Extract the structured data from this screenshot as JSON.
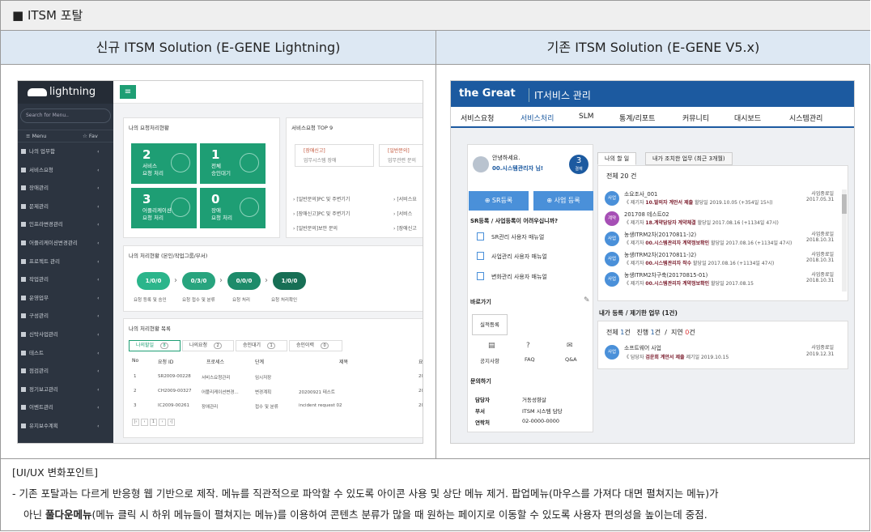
{
  "header": {
    "title": "■ ITSM 포탈"
  },
  "columns": {
    "left": "신규 ITSM Solution (E-GENE Lightning)",
    "right": "기존 ITSM Solution (E-GENE V5.x)"
  },
  "notes": {
    "title": "[UI/UX 변화포인트]",
    "line1": "- 기존 포탈과는 다르게 반응형 웹 기반으로 제작. 메뉴를 직관적으로 파악할 수 있도록 아이콘 사용 및 상단 메뉴 제거. 팝업메뉴(마우스를 가져다 대면 펼쳐지는 메뉴)가",
    "line2a": "아닌 ",
    "line2b": "풀다운메뉴",
    "line2c": "(메뉴 클릭 시 하위 메뉴들이 펼쳐지는 메뉴)를 이용하여 콘텐츠 분류가 많을 때 원하는 페이지로 이동할 수 있도록 사용자 편의성을 높이는데 중점."
  },
  "lightning": {
    "logo": "lightning",
    "search_placeholder": "Search for Menu..",
    "menu_label": "≡ Menu",
    "fav_label": "☆ Fav",
    "sidebar_items": [
      "나의 업무함",
      "서비스요청",
      "장애관리",
      "문제관리",
      "인프라변경관리",
      "어플리케이션변경관리",
      "프로젝트 관리",
      "작업관리",
      "운영업무",
      "구성관리",
      "신탁사업관리",
      "테스트",
      "점검관리",
      "정기보고관리",
      "이벤트관리",
      "유지보수계획"
    ],
    "sidebar_arrow": "‹",
    "menu_button": "≡",
    "my_status": {
      "title": "나의 요청처리현황",
      "tiles": [
        {
          "num": "2",
          "label1": "서비스",
          "label2": "요청 처리"
        },
        {
          "num": "1",
          "label1": "전체",
          "label2": "승인대기"
        },
        {
          "num": "3",
          "label1": "어플리케이션",
          "label2": "요청 처리"
        },
        {
          "num": "0",
          "label1": "장애",
          "label2": "요청 처리"
        }
      ]
    },
    "top9": {
      "title": "서비스요청 TOP 9",
      "cards": [
        {
          "tag": "[장애신고]",
          "desc": "업무시스템 장애"
        },
        {
          "tag": "[일반문의]",
          "desc": "업무관련 문의"
        }
      ],
      "list": [
        "[일반문의]PC 및 주변기기",
        "[서비스요",
        "[장애신고]PC 및 주변기기",
        "[서비스",
        "[일반문의]보안 문의",
        "[장애신고"
      ]
    },
    "process": {
      "title": "나의 처리현황 (본인/작업그룹/부서)",
      "pills": [
        "1/0/0",
        "0/3/0",
        "0/0/0",
        "1/0/0"
      ],
      "labels": [
        "요청 등록 및 승인",
        "요청 접수 및 분류",
        "요청 처리",
        "요청 처리확인"
      ]
    },
    "list": {
      "title": "나의 처리현황 목록",
      "tabs": [
        {
          "label": "나의할일",
          "count": "8"
        },
        {
          "label": "나의요청",
          "count": "2"
        },
        {
          "label": "승인대기",
          "count": "1"
        },
        {
          "label": "승인이력",
          "count": "0"
        }
      ],
      "headers": [
        "No",
        "요청 ID",
        "프로세스",
        "단계",
        "제목",
        "요"
      ],
      "rows": [
        [
          "1",
          "SR2009-00228",
          "서비스요청관리",
          "임시저장",
          "",
          "2020"
        ],
        [
          "2",
          "CH2009-00327",
          "어플리케이션변경...",
          "변경계획",
          "20200921 테스트",
          "2020"
        ],
        [
          "3",
          "IC2009-00261",
          "장애관리",
          "접수 및 분류",
          "incident request 02",
          "2020"
        ]
      ],
      "pager": [
        "|‹",
        "‹",
        "1",
        "›",
        "›|"
      ]
    }
  },
  "v5": {
    "brand": "the Great",
    "sub": "IT서비스 관리",
    "nav": [
      "서비스요청",
      "서비스처리",
      "SLM",
      "통계/리포트",
      "커뮤니티",
      "대시보드",
      "시스템관리"
    ],
    "active_nav": "서비스처리",
    "greeting": "안녕하세요.",
    "user": "00.시스템관리자 님!",
    "approval": {
      "num": "3",
      "label": "결재"
    },
    "btn_sr": "⊕ SR등록",
    "btn_biz": "⊕ 사업 등록",
    "help_title": "SR등록 / 사업등록이 어려우십니까?",
    "manuals": [
      "SR관리 사용자 매뉴얼",
      "사업관리 사용자 매뉴얼",
      "변화관리 사용자 매뉴얼"
    ],
    "shortcut_title": "바로가기",
    "shortcut_btn": "실적등록",
    "quick": [
      "공지사항",
      "FAQ",
      "Q&A"
    ],
    "contact_title": "문의하기",
    "contact": [
      {
        "k": "담당자",
        "v": "거동성향살"
      },
      {
        "k": "부서",
        "v": "ITSM 시스템 담당"
      },
      {
        "k": "연락처",
        "v": "02-0000-0000"
      }
    ],
    "tabs": [
      "나의 할 일",
      "내가 조치한 업무 (최근 3개월)"
    ],
    "total": "전체 20 건",
    "items": [
      {
        "badge": "사업",
        "color": "#4a90d9",
        "title": "소요조사_001",
        "pre": "《 제기자",
        "who": "10.발의자",
        "stage": "계안서 제출",
        "meta": "할당일 2019.10.05 (+354일 15시)",
        "st": "사업중료일",
        "date": "2017.05.31"
      },
      {
        "badge": "계약",
        "color": "#a64fb5",
        "title": "201708 테스트02",
        "pre": "《 제기자",
        "who": "18.계약담당자",
        "stage": "계약체결",
        "meta": "할당일 2017.08.16 (+1134일 47시)",
        "st": "",
        "date": ""
      },
      {
        "badge": "사업",
        "color": "#4a90d9",
        "title": "농생ITRM2차(20170811-)2)",
        "pre": "《 제기자",
        "who": "00.시스템관리자",
        "stage": "계약정보확인",
        "meta": "할당일 2017.08.16 (+1134일 47시)",
        "st": "사업중료일",
        "date": "2018.10.31"
      },
      {
        "badge": "사업",
        "color": "#4a90d9",
        "title": "농생ITRM2차(20170811-)2)",
        "pre": "《 제기자",
        "who": "00.시스템관리자",
        "stage": "착수",
        "meta": "할당일 2017.08.16 (+1134일 47시)",
        "st": "사업중료일",
        "date": "2018.10.31"
      },
      {
        "badge": "사업",
        "color": "#4a90d9",
        "title": "농생ITRM2차구축(20170815-01)",
        "pre": "《 제기자",
        "who": "00.시스템관리자",
        "stage": "계약정보확인",
        "meta": "할당일 2017.08.15",
        "st": "사업중료일",
        "date": "2018.10.31"
      }
    ],
    "sec2_title": "내가 등록 / 제기한 업무 (1건)",
    "counts": {
      "all_label": "전체",
      "all": "1",
      "prog_label": "진행",
      "prog": "1",
      "delay_label": "지연",
      "delay": "0",
      "unit": "건"
    },
    "item2": {
      "badge": "사업",
      "title": "소프트웨어 사업",
      "pre": "《 담당자",
      "who": "검운회",
      "stage": "계안서 제출",
      "meta": "제기일 2019.10.15",
      "st": "사업중료일",
      "date": "2019.12.31"
    }
  }
}
